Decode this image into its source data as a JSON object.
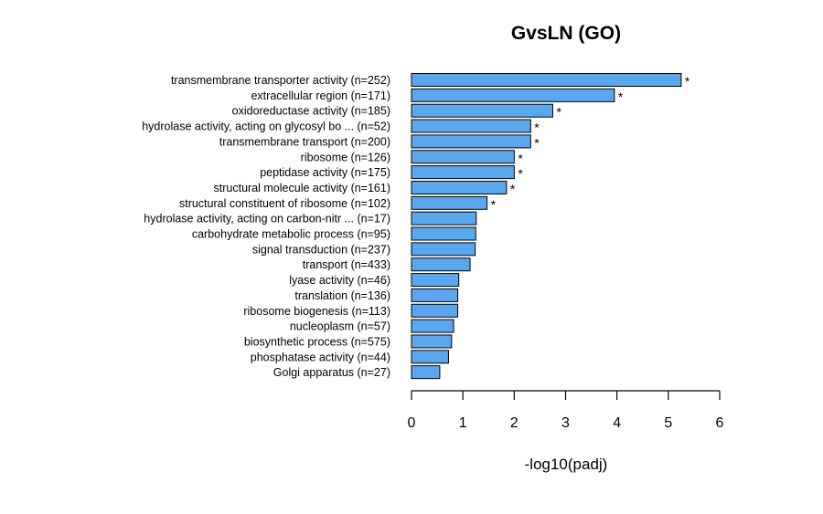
{
  "chart_data": {
    "type": "bar",
    "orientation": "horizontal",
    "title": "GvsLN (GO)",
    "xlabel": "-log10(padj)",
    "ylabel": "",
    "xlim": [
      0,
      6
    ],
    "xticks": [
      "0",
      "1",
      "2",
      "3",
      "4",
      "5",
      "6"
    ],
    "bar_color": "#5AA7EE",
    "significance_marker": "*",
    "categories": [
      "transmembrane transporter activity (n=252)",
      "extracellular region (n=171)",
      "oxidoreductase activity (n=185)",
      "hydrolase activity, acting on glycosyl bo ... (n=52)",
      "transmembrane transport (n=200)",
      "ribosome (n=126)",
      "peptidase activity (n=175)",
      "structural molecule activity (n=161)",
      "structural constituent of ribosome (n=102)",
      "hydrolase activity, acting on carbon-nitr ... (n=17)",
      "carbohydrate metabolic process (n=95)",
      "signal transduction (n=237)",
      "transport (n=433)",
      "lyase activity (n=46)",
      "translation (n=136)",
      "ribosome biogenesis (n=113)",
      "nucleoplasm (n=57)",
      "biosynthetic process (n=575)",
      "phosphatase activity (n=44)",
      "Golgi apparatus (n=27)"
    ],
    "values": [
      5.25,
      3.95,
      2.75,
      2.32,
      2.32,
      2.0,
      2.0,
      1.85,
      1.47,
      1.26,
      1.25,
      1.24,
      1.14,
      0.92,
      0.9,
      0.9,
      0.82,
      0.78,
      0.72,
      0.55
    ],
    "significant": [
      true,
      true,
      true,
      true,
      true,
      true,
      true,
      true,
      true,
      false,
      false,
      false,
      false,
      false,
      false,
      false,
      false,
      false,
      false,
      false
    ]
  }
}
